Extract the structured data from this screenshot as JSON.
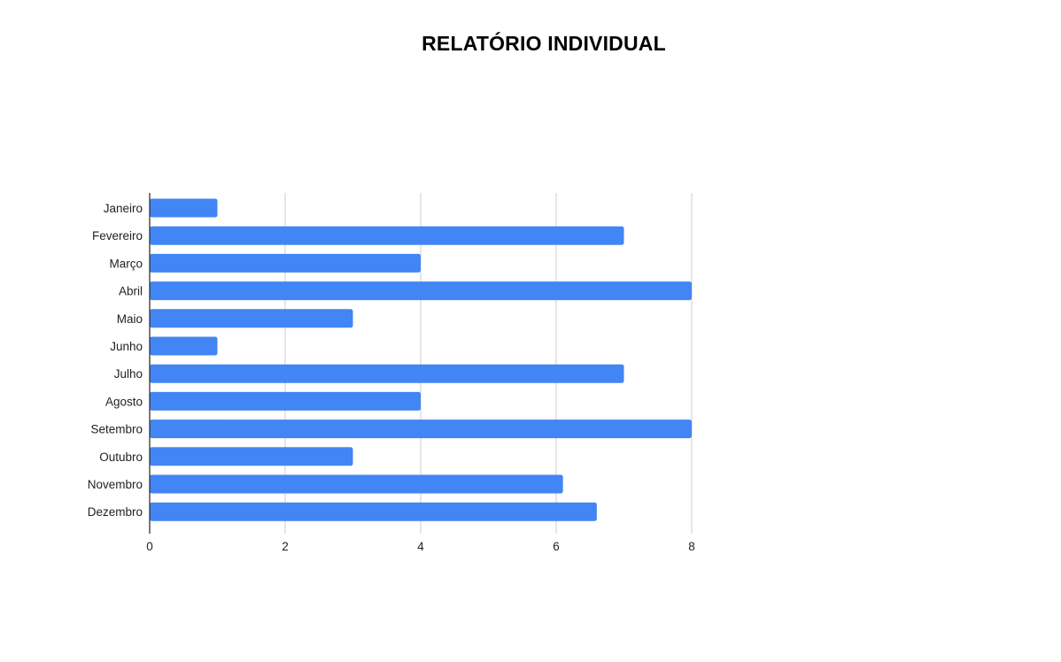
{
  "chart_data": {
    "type": "bar",
    "orientation": "horizontal",
    "title": "RELATÓRIO INDIVIDUAL",
    "xlabel": "",
    "ylabel": "",
    "categories": [
      "Janeiro",
      "Fevereiro",
      "Março",
      "Abril",
      "Maio",
      "Junho",
      "Julho",
      "Agosto",
      "Setembro",
      "Outubro",
      "Novembro",
      "Dezembro"
    ],
    "values": [
      1,
      7,
      4,
      8,
      3,
      1,
      7,
      4,
      8,
      3,
      6.1,
      6.6
    ],
    "xlim": [
      0,
      8
    ],
    "xticks": [
      "0",
      "2",
      "4",
      "6",
      "8"
    ],
    "grid": "vertical",
    "legend": "none",
    "colors": {
      "bar": "#4285f4",
      "grid": "#cccccc",
      "axis": "#333333"
    }
  }
}
